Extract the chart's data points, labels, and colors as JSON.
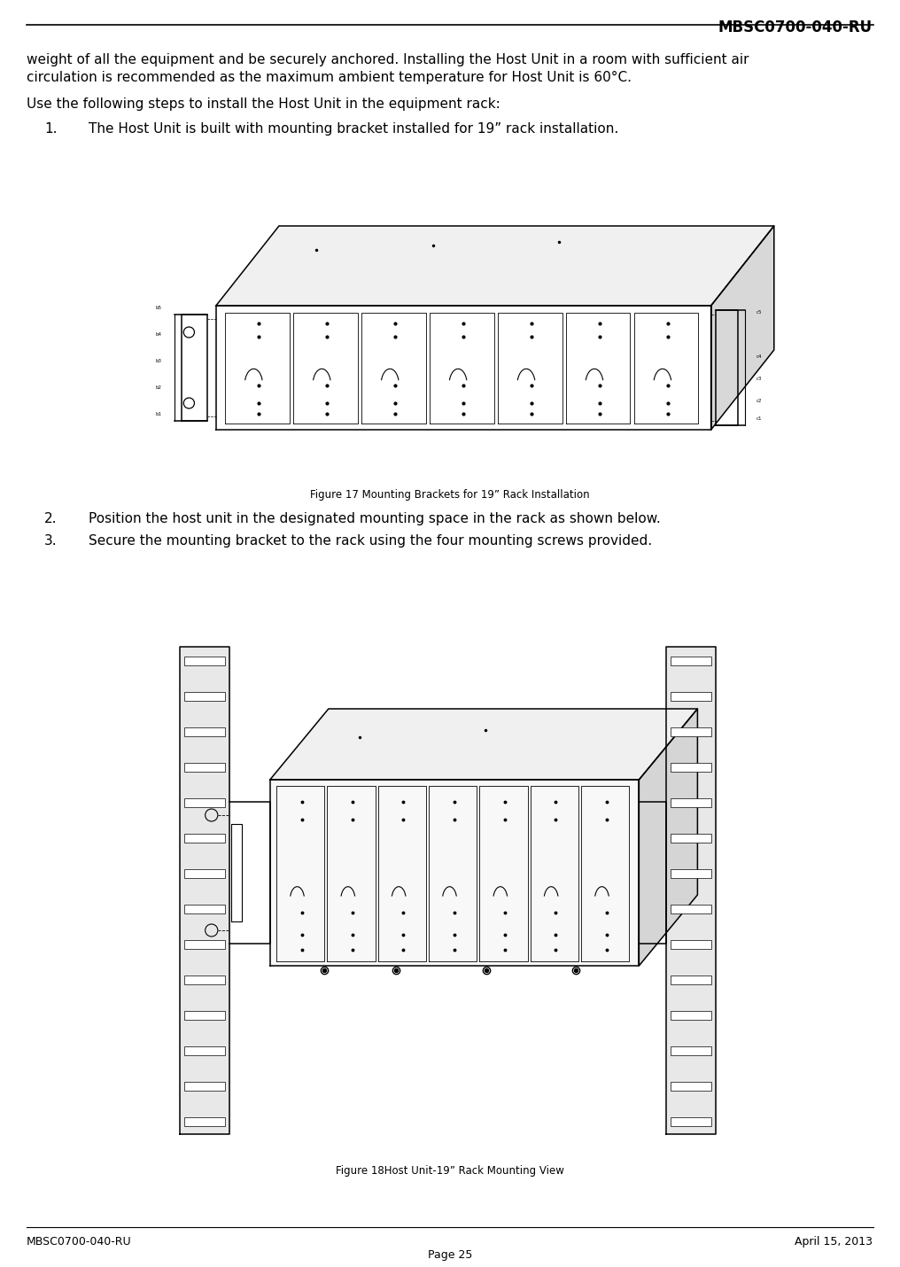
{
  "header_text": "MBSC0700-040-RU",
  "footer_left": "MBSC0700-040-RU",
  "footer_right": "April 15, 2013",
  "footer_center": "Page 25",
  "body_para1_line1": "weight of all the equipment and be securely anchored. Installing the Host Unit in a room with sufficient air",
  "body_para1_line2": "circulation is recommended as the maximum ambient temperature for Host Unit is 60°C.",
  "body_para2": "Use the following steps to install the Host Unit in the equipment rack:",
  "step1_num": "1.",
  "step1_text": "The Host Unit is built with mounting bracket installed for 19” rack installation.",
  "step2_num": "2.",
  "step2_text": "Position the host unit in the designated mounting space in the rack as shown below.",
  "step3_num": "3.",
  "step3_text": "Secure the mounting bracket to the rack using the four mounting screws provided.",
  "fig17_caption": "Figure 17 Mounting Brackets for 19” Rack Installation",
  "fig18_caption": "Figure 18Host Unit-19” Rack Mounting View",
  "bg_color": "#ffffff",
  "text_color": "#000000",
  "font_size_body": 11.0,
  "font_size_header": 12,
  "font_size_footer": 9.0,
  "font_size_caption": 8.5,
  "lw_drawing": 1.0
}
